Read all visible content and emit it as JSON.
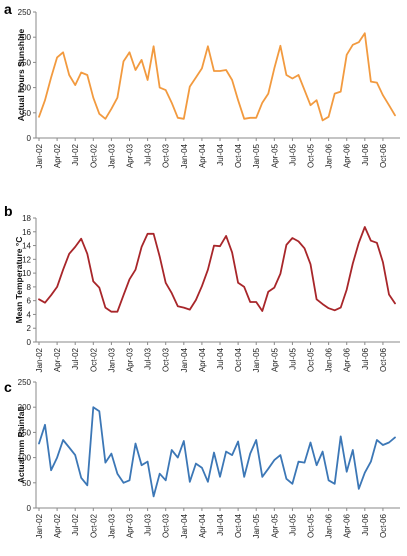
{
  "chart_data": [
    {
      "type": "line",
      "panel_label": "a",
      "ylabel": "Actual hours Sunshine",
      "ylim": [
        0,
        250
      ],
      "yticks": [
        "0",
        "50",
        "100",
        "150",
        "200",
        "250"
      ],
      "grid": false,
      "x_tick_labels": [
        "Jan-02",
        "Apr-02",
        "Jul-02",
        "Oct-02",
        "Jan-03",
        "Apr-03",
        "Jul-03",
        "Oct-03",
        "Jan-04",
        "Apr-04",
        "Jul-04",
        "Oct-04",
        "Jan-05",
        "Apr-05",
        "Jul-05",
        "Oct-05",
        "Jan-06",
        "Apr-06",
        "Jul-06",
        "Oct-06"
      ],
      "color": "#F29A3F",
      "values": [
        42,
        75,
        120,
        160,
        170,
        125,
        105,
        130,
        125,
        80,
        48,
        38,
        58,
        80,
        152,
        170,
        135,
        155,
        115,
        182,
        100,
        95,
        70,
        40,
        38,
        102,
        120,
        138,
        182,
        133,
        133,
        135,
        115,
        75,
        38,
        40,
        40,
        70,
        88,
        138,
        183,
        125,
        118,
        125,
        95,
        65,
        75,
        35,
        42,
        88,
        92,
        165,
        185,
        190,
        208,
        112,
        110,
        85,
        65,
        45
      ]
    },
    {
      "type": "line",
      "panel_label": "b",
      "ylabel": "Mean Temperature °C",
      "ylim": [
        0,
        18
      ],
      "yticks": [
        "0",
        "2",
        "4",
        "6",
        "8",
        "10",
        "12",
        "14",
        "16",
        "18"
      ],
      "grid": false,
      "x_tick_labels": [
        "Jan-02",
        "Apr-02",
        "Jul-02",
        "Oct-02",
        "Jan-03",
        "Apr-03",
        "Jul-03",
        "Oct-03",
        "Jan-04",
        "Apr-04",
        "Jul-04",
        "Oct-04",
        "Jan-05",
        "Apr-05",
        "Jul-05",
        "Oct-05",
        "Jan-06",
        "Apr-06",
        "Jul-06",
        "Oct-06"
      ],
      "color": "#A8262A",
      "values": [
        6.2,
        5.7,
        6.8,
        8.0,
        10.5,
        12.8,
        13.8,
        15.0,
        12.8,
        8.8,
        7.9,
        5.0,
        4.4,
        4.4,
        6.8,
        9.1,
        10.5,
        13.8,
        15.7,
        15.7,
        12.4,
        8.6,
        7.1,
        5.2,
        5.0,
        4.7,
        6.1,
        8.1,
        10.5,
        14.0,
        13.9,
        15.4,
        13.0,
        8.6,
        8.0,
        5.8,
        5.8,
        4.5,
        7.3,
        7.9,
        9.9,
        14.1,
        15.1,
        14.6,
        13.6,
        11.3,
        6.2,
        5.5,
        4.9,
        4.6,
        5.0,
        7.6,
        11.4,
        14.4,
        16.7,
        14.7,
        14.4,
        11.6,
        6.9,
        5.6
      ]
    },
    {
      "type": "line",
      "panel_label": "c",
      "ylabel": "Actual mm Rainfall",
      "ylim": [
        0,
        250
      ],
      "yticks": [
        "0",
        "50",
        "100",
        "150",
        "200",
        "250"
      ],
      "grid": false,
      "x_tick_labels": [
        "Jan-02",
        "Apr-02",
        "Jul-02",
        "Oct-02",
        "Jan-03",
        "Apr-03",
        "Jul-03",
        "Oct-03",
        "Jan-04",
        "Apr-04",
        "Jul-04",
        "Oct-04",
        "Jan-05",
        "Apr-05",
        "Jul-05",
        "Oct-05",
        "Jan-06",
        "Apr-06",
        "Jul-06",
        "Oct-06"
      ],
      "color": "#3C77B6",
      "values": [
        128,
        165,
        75,
        100,
        135,
        120,
        105,
        60,
        45,
        200,
        192,
        90,
        108,
        68,
        50,
        55,
        128,
        85,
        92,
        23,
        68,
        55,
        115,
        100,
        133,
        52,
        88,
        80,
        52,
        110,
        62,
        112,
        105,
        132,
        62,
        108,
        135,
        62,
        78,
        95,
        105,
        58,
        48,
        92,
        90,
        130,
        85,
        112,
        55,
        48,
        142,
        72,
        115,
        38,
        70,
        92,
        135,
        125,
        130,
        140
      ]
    }
  ]
}
